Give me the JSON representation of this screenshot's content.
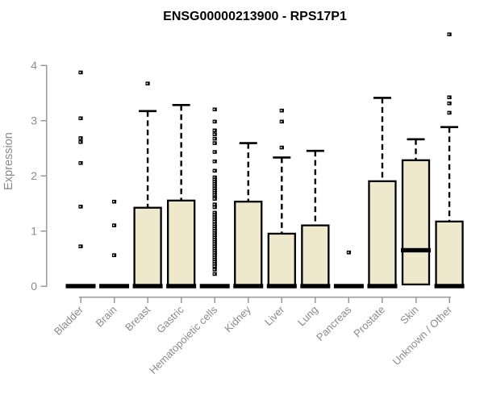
{
  "chart_data": {
    "type": "boxplot",
    "title": "ENSG00000213900 - RPS17P1",
    "ylabel": "Expression",
    "xlabel": "",
    "yticks": [
      0,
      1,
      2,
      3,
      4
    ],
    "ylim": [
      0,
      4.6
    ],
    "grid": false,
    "legend": null,
    "colors": {
      "box_fill": "#EEE8CD",
      "box_border": "#000000",
      "median": "#000000",
      "whisker": "#000000",
      "outlier": "#000000",
      "axis_line": "#9a9a9a",
      "tick_label": "#8a8a8a",
      "title": "#000000"
    },
    "categories": [
      "Bladder",
      "Brain",
      "Breast",
      "Gastric",
      "Hematopoietic cells",
      "Kidney",
      "Liver",
      "Lung",
      "Pancreas",
      "Prostate",
      "Skin",
      "Unknown / Other"
    ],
    "boxes": [
      {
        "category": "Bladder",
        "q1": 0,
        "median": 0,
        "q3": 0,
        "whisker_low": 0,
        "whisker_high": 0,
        "outliers": [
          3.87,
          3.04,
          2.68,
          2.61,
          2.23,
          1.44,
          0.72
        ]
      },
      {
        "category": "Brain",
        "q1": 0,
        "median": 0,
        "q3": 0,
        "whisker_low": 0,
        "whisker_high": 0,
        "outliers": [
          1.53,
          1.1,
          0.56
        ]
      },
      {
        "category": "Breast",
        "q1": 0,
        "median": 0,
        "q3": 1.42,
        "whisker_low": 0,
        "whisker_high": 3.17,
        "outliers": [
          3.67
        ]
      },
      {
        "category": "Gastric",
        "q1": 0,
        "median": 0,
        "q3": 1.55,
        "whisker_low": 0,
        "whisker_high": 3.28,
        "outliers": []
      },
      {
        "category": "Hematopoietic cells",
        "q1": 0,
        "median": 0,
        "q3": 0,
        "whisker_low": 0,
        "whisker_high": 0,
        "outliers": [
          3.2,
          2.98,
          2.82,
          2.75,
          2.67,
          2.59,
          2.43,
          2.26,
          2.09,
          1.97,
          1.93,
          1.89,
          1.85,
          1.81,
          1.77,
          1.73,
          1.69,
          1.65,
          1.61,
          1.58,
          1.48,
          1.43,
          1.33,
          1.29,
          1.25,
          1.21,
          1.17,
          1.12,
          1.08,
          1.04,
          1.0,
          0.96,
          0.92,
          0.88,
          0.84,
          0.8,
          0.76,
          0.72,
          0.68,
          0.64,
          0.6,
          0.56,
          0.52,
          0.48,
          0.44,
          0.4,
          0.36,
          0.3,
          0.22
        ]
      },
      {
        "category": "Kidney",
        "q1": 0,
        "median": 0,
        "q3": 1.53,
        "whisker_low": 0,
        "whisker_high": 2.59,
        "outliers": []
      },
      {
        "category": "Liver",
        "q1": 0,
        "median": 0,
        "q3": 0.95,
        "whisker_low": 0,
        "whisker_high": 2.33,
        "outliers": [
          3.18,
          2.98,
          2.51
        ]
      },
      {
        "category": "Lung",
        "q1": 0,
        "median": 0,
        "q3": 1.1,
        "whisker_low": 0,
        "whisker_high": 2.45,
        "outliers": []
      },
      {
        "category": "Pancreas",
        "q1": 0,
        "median": 0,
        "q3": 0,
        "whisker_low": 0,
        "whisker_high": 0,
        "outliers": [
          0.61
        ]
      },
      {
        "category": "Prostate",
        "q1": 0,
        "median": 0,
        "q3": 1.9,
        "whisker_low": 0,
        "whisker_high": 3.41,
        "outliers": []
      },
      {
        "category": "Skin",
        "q1": 0.03,
        "median": 0.65,
        "q3": 2.28,
        "whisker_low": 0.03,
        "whisker_high": 2.66,
        "outliers": []
      },
      {
        "category": "Unknown / Other",
        "q1": 0,
        "median": 0,
        "q3": 1.17,
        "whisker_low": 0,
        "whisker_high": 2.88,
        "outliers": [
          4.56,
          3.42,
          3.31,
          3.14
        ]
      }
    ]
  }
}
